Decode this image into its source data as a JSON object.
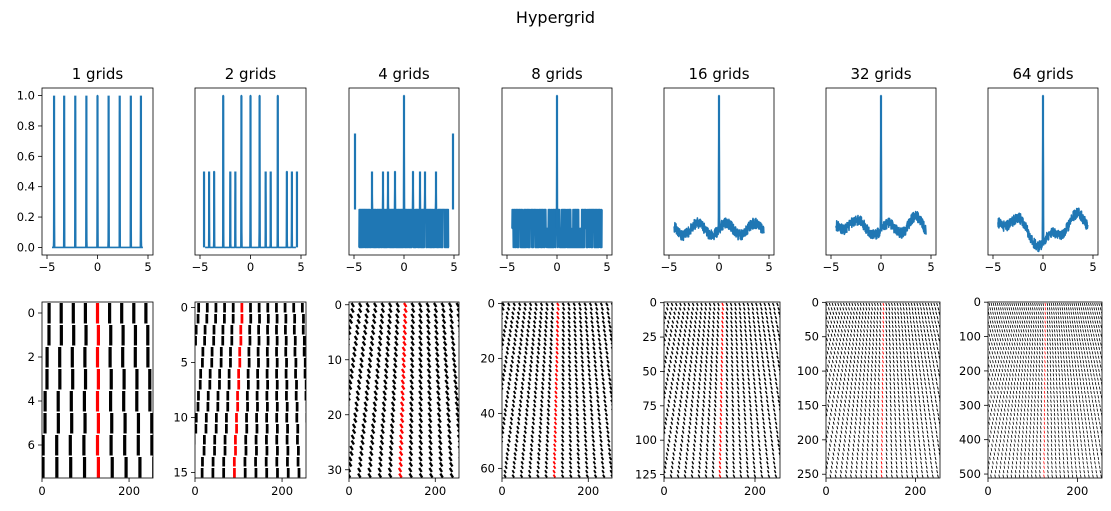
{
  "figure": {
    "title": "Hypergrid"
  },
  "colors": {
    "line": "#1f77b4",
    "highlight": "#ff0000",
    "ink": "#000000"
  },
  "chart_data": [
    {
      "type": "line",
      "title": "1 grids",
      "grids": 1,
      "xlim": [
        -5,
        5
      ],
      "ylim": [
        -0.05,
        1.05
      ],
      "xticks": [
        -5,
        0,
        5
      ],
      "yticks": [
        0.0,
        0.2,
        0.4,
        0.6,
        0.8,
        1.0
      ],
      "peaks": [
        {
          "x": -4.3,
          "y": 1.0
        },
        {
          "x": -3.3,
          "y": 1.0
        },
        {
          "x": -2.2,
          "y": 1.0
        },
        {
          "x": -1.1,
          "y": 1.0
        },
        {
          "x": 0.0,
          "y": 1.0
        },
        {
          "x": 1.1,
          "y": 1.0
        },
        {
          "x": 2.2,
          "y": 1.0
        },
        {
          "x": 3.3,
          "y": 1.0
        },
        {
          "x": 4.3,
          "y": 1.0
        }
      ],
      "baseline": 0.0
    },
    {
      "type": "line",
      "title": "2 grids",
      "grids": 2,
      "xlim": [
        -5,
        5
      ],
      "ylim": [
        -0.05,
        1.05
      ],
      "xticks": [
        -5,
        0,
        5
      ],
      "peaks": [
        {
          "x": -4.6,
          "y": 0.5
        },
        {
          "x": -4.1,
          "y": 0.5
        },
        {
          "x": -3.6,
          "y": 0.5
        },
        {
          "x": -2.7,
          "y": 1.0
        },
        {
          "x": -2.0,
          "y": 0.5
        },
        {
          "x": -1.5,
          "y": 0.5
        },
        {
          "x": -0.9,
          "y": 1.0
        },
        {
          "x": 0.0,
          "y": 1.0
        },
        {
          "x": 0.9,
          "y": 1.0
        },
        {
          "x": 1.5,
          "y": 0.5
        },
        {
          "x": 2.0,
          "y": 0.5
        },
        {
          "x": 2.7,
          "y": 1.0
        },
        {
          "x": 3.6,
          "y": 0.5
        },
        {
          "x": 4.1,
          "y": 0.5
        },
        {
          "x": 4.6,
          "y": 0.5
        }
      ],
      "baseline": 0.0
    },
    {
      "type": "line",
      "title": "4 grids",
      "grids": 4,
      "xlim": [
        -5,
        5
      ],
      "ylim": [
        -0.05,
        1.05
      ],
      "xticks": [
        -5,
        0,
        5
      ],
      "peaks": [
        {
          "x": -4.9,
          "y": 0.75
        },
        {
          "x": -3.2,
          "y": 0.5
        },
        {
          "x": -2.1,
          "y": 0.5
        },
        {
          "x": -1.6,
          "y": 0.5
        },
        {
          "x": -0.9,
          "y": 0.5
        },
        {
          "x": 0.0,
          "y": 1.0
        },
        {
          "x": 0.9,
          "y": 0.5
        },
        {
          "x": 1.6,
          "y": 0.5
        },
        {
          "x": 2.1,
          "y": 0.5
        },
        {
          "x": 3.2,
          "y": 0.5
        },
        {
          "x": 4.9,
          "y": 0.75
        }
      ],
      "noise_levels": [
        0.0,
        0.25
      ],
      "baseline": 0.25
    },
    {
      "type": "line",
      "title": "8 grids",
      "grids": 8,
      "xlim": [
        -5,
        5
      ],
      "ylim": [
        -0.05,
        1.05
      ],
      "xticks": [
        -5,
        0,
        5
      ],
      "peaks": [
        {
          "x": 0.0,
          "y": 1.0
        }
      ],
      "noise_levels": [
        0.0,
        0.125,
        0.25
      ],
      "baseline": 0.125
    },
    {
      "type": "line",
      "title": "16 grids",
      "grids": 16,
      "xlim": [
        -5,
        5
      ],
      "ylim": [
        -0.05,
        1.05
      ],
      "xticks": [
        -5,
        0,
        5
      ],
      "peaks": [
        {
          "x": 0.0,
          "y": 1.0
        }
      ],
      "noise_levels": [
        0.06,
        0.25
      ],
      "baseline": 0.12
    },
    {
      "type": "line",
      "title": "32 grids",
      "grids": 32,
      "xlim": [
        -5,
        5
      ],
      "ylim": [
        -0.05,
        1.05
      ],
      "xticks": [
        -5,
        0,
        5
      ],
      "peaks": [
        {
          "x": 0.0,
          "y": 1.0
        }
      ],
      "noise_levels": [
        0.06,
        0.25
      ],
      "baseline": 0.12
    },
    {
      "type": "line",
      "title": "64 grids",
      "grids": 64,
      "xlim": [
        -5,
        5
      ],
      "ylim": [
        -0.05,
        1.05
      ],
      "xticks": [
        -5,
        0,
        5
      ],
      "peaks": [
        {
          "x": 0.0,
          "y": 1.0
        }
      ],
      "noise_levels": [
        0.0,
        0.2
      ],
      "baseline": 0.12
    },
    {
      "type": "heatmap",
      "grids": 1,
      "xlim": [
        0,
        255
      ],
      "ylim": [
        7.5,
        -0.5
      ],
      "xticks": [
        0,
        200
      ],
      "yticks": [
        0,
        2,
        4,
        6
      ],
      "stripes": 10,
      "highlight_stripe": 5
    },
    {
      "type": "heatmap",
      "grids": 2,
      "xlim": [
        0,
        255
      ],
      "ylim": [
        15.5,
        -0.5
      ],
      "xticks": [
        0,
        200
      ],
      "yticks": [
        0,
        5,
        10,
        15
      ],
      "stripes": 14,
      "highlight_stripe": 6
    },
    {
      "type": "heatmap",
      "grids": 4,
      "xlim": [
        0,
        255
      ],
      "ylim": [
        31.5,
        -0.5
      ],
      "xticks": [
        0,
        200
      ],
      "yticks": [
        0,
        10,
        20,
        30
      ],
      "stripes": 16,
      "highlight_stripe": 8
    },
    {
      "type": "heatmap",
      "grids": 8,
      "xlim": [
        0,
        255
      ],
      "ylim": [
        63.5,
        -0.5
      ],
      "xticks": [
        0,
        200
      ],
      "yticks": [
        0,
        20,
        40,
        60
      ],
      "stripes": 22,
      "highlight_stripe": 11
    },
    {
      "type": "heatmap",
      "grids": 16,
      "xlim": [
        0,
        255
      ],
      "ylim": [
        127.5,
        -0.5
      ],
      "xticks": [
        0,
        200
      ],
      "yticks": [
        0,
        25,
        50,
        75,
        100,
        125
      ],
      "stripes": 30,
      "highlight_stripe": 15
    },
    {
      "type": "heatmap",
      "grids": 32,
      "xlim": [
        0,
        255
      ],
      "ylim": [
        255.5,
        -0.5
      ],
      "xticks": [
        0,
        200
      ],
      "yticks": [
        0,
        50,
        100,
        150,
        200,
        250
      ],
      "stripes": 44,
      "highlight_stripe": 22
    },
    {
      "type": "heatmap",
      "grids": 64,
      "xlim": [
        0,
        255
      ],
      "ylim": [
        511.5,
        -0.5
      ],
      "xticks": [
        0,
        200
      ],
      "yticks": [
        0,
        100,
        200,
        300,
        400,
        500
      ],
      "stripes": 60,
      "highlight_stripe": 30
    }
  ]
}
